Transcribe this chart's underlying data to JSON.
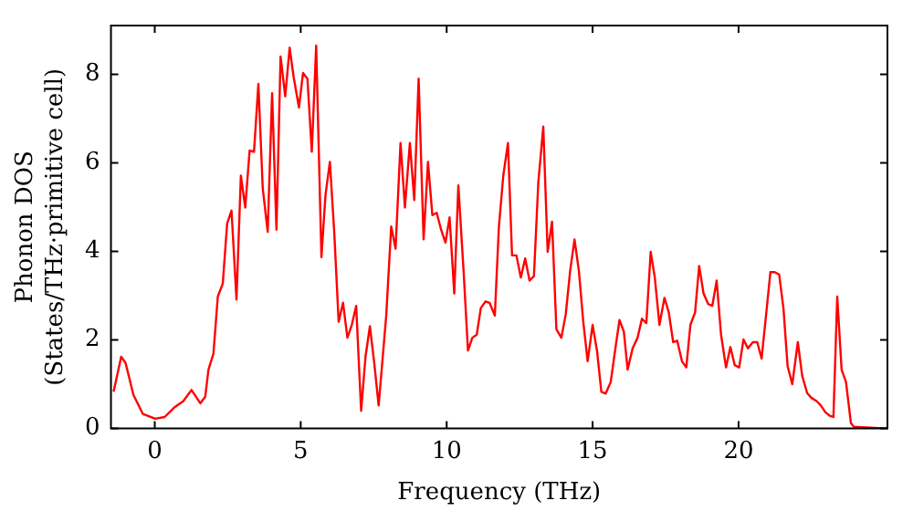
{
  "chart_data": {
    "type": "line",
    "xlabel": "Frequency (THz)",
    "ylabel": "Phonon DOS\n(States/THz·primitive cell)",
    "xlim": [
      -1.5,
      25.1
    ],
    "ylim": [
      0,
      9.1
    ],
    "xticks": [
      0,
      5,
      10,
      15,
      20
    ],
    "yticks": [
      0,
      2,
      4,
      6,
      8
    ],
    "marker": "none",
    "line_style": "solid",
    "legend": false,
    "series": [
      {
        "color": "#ff0000",
        "x": [
          -1.41,
          -1.15,
          -1.0,
          -0.73,
          -0.41,
          0.02,
          0.34,
          0.66,
          0.98,
          1.26,
          1.56,
          1.73,
          1.84,
          2.01,
          2.16,
          2.33,
          2.48,
          2.63,
          2.8,
          2.95,
          3.1,
          3.25,
          3.4,
          3.55,
          3.7,
          3.87,
          4.02,
          4.17,
          4.31,
          4.47,
          4.62,
          4.76,
          4.94,
          5.08,
          5.23,
          5.38,
          5.53,
          5.71,
          5.85,
          6.0,
          6.15,
          6.3,
          6.45,
          6.6,
          6.75,
          6.9,
          7.07,
          7.22,
          7.37,
          7.52,
          7.67,
          7.93,
          8.1,
          8.25,
          8.42,
          8.57,
          8.74,
          8.89,
          9.04,
          9.21,
          9.36,
          9.51,
          9.66,
          9.81,
          9.96,
          10.1,
          10.26,
          10.4,
          10.58,
          10.73,
          10.88,
          11.03,
          11.17,
          11.33,
          11.47,
          11.65,
          11.79,
          11.94,
          12.1,
          12.24,
          12.39,
          12.54,
          12.69,
          12.84,
          12.99,
          13.14,
          13.31,
          13.46,
          13.61,
          13.76,
          13.93,
          14.08,
          14.23,
          14.38,
          14.53,
          14.68,
          14.83,
          15.0,
          15.15,
          15.3,
          15.45,
          15.62,
          15.77,
          15.92,
          16.07,
          16.2,
          16.37,
          16.54,
          16.69,
          16.84,
          16.99,
          17.13,
          17.29,
          17.46,
          17.61,
          17.76,
          17.9,
          18.06,
          18.21,
          18.35,
          18.51,
          18.65,
          18.8,
          18.96,
          19.1,
          19.25,
          19.4,
          19.57,
          19.72,
          19.87,
          20.02,
          20.17,
          20.32,
          20.49,
          20.64,
          20.79,
          20.94,
          21.09,
          21.24,
          21.39,
          21.54,
          21.68,
          21.84,
          22.03,
          22.18,
          22.35,
          22.5,
          22.67,
          22.82,
          22.97,
          23.12,
          23.25,
          23.38,
          23.53,
          23.68,
          23.85,
          23.95,
          25.1
        ],
        "values": [
          0.83,
          1.62,
          1.48,
          0.76,
          0.33,
          0.22,
          0.26,
          0.47,
          0.62,
          0.87,
          0.57,
          0.72,
          1.33,
          1.69,
          2.98,
          3.27,
          4.63,
          4.92,
          2.91,
          5.71,
          4.99,
          6.28,
          6.25,
          7.78,
          5.42,
          4.44,
          7.57,
          4.49,
          8.4,
          7.5,
          8.6,
          7.93,
          7.25,
          8.03,
          7.9,
          6.25,
          8.65,
          3.87,
          5.28,
          6.02,
          4.42,
          2.41,
          2.84,
          2.05,
          2.34,
          2.77,
          0.4,
          1.62,
          2.31,
          1.48,
          0.52,
          2.55,
          4.56,
          4.06,
          6.45,
          4.99,
          6.45,
          5.16,
          7.9,
          4.27,
          6.02,
          4.82,
          4.87,
          4.49,
          4.2,
          4.77,
          3.05,
          5.49,
          3.56,
          1.76,
          2.05,
          2.12,
          2.72,
          2.87,
          2.84,
          2.55,
          4.56,
          5.71,
          6.45,
          3.91,
          3.91,
          3.41,
          3.84,
          3.34,
          3.44,
          5.56,
          6.82,
          3.99,
          4.67,
          2.24,
          2.05,
          2.58,
          3.56,
          4.27,
          3.56,
          2.41,
          1.52,
          2.34,
          1.76,
          0.83,
          0.79,
          1.05,
          1.76,
          2.45,
          2.19,
          1.33,
          1.81,
          2.05,
          2.48,
          2.38,
          3.99,
          3.41,
          2.34,
          2.95,
          2.62,
          1.95,
          1.98,
          1.52,
          1.38,
          2.34,
          2.62,
          3.67,
          3.05,
          2.81,
          2.77,
          3.34,
          2.12,
          1.38,
          1.84,
          1.43,
          1.38,
          2.01,
          1.81,
          1.95,
          1.95,
          1.58,
          2.55,
          3.53,
          3.53,
          3.48,
          2.7,
          1.41,
          1.0,
          1.95,
          1.19,
          0.8,
          0.69,
          0.62,
          0.52,
          0.37,
          0.29,
          0.26,
          2.98,
          1.33,
          1.05,
          0.12,
          0.04,
          0
        ]
      }
    ]
  }
}
